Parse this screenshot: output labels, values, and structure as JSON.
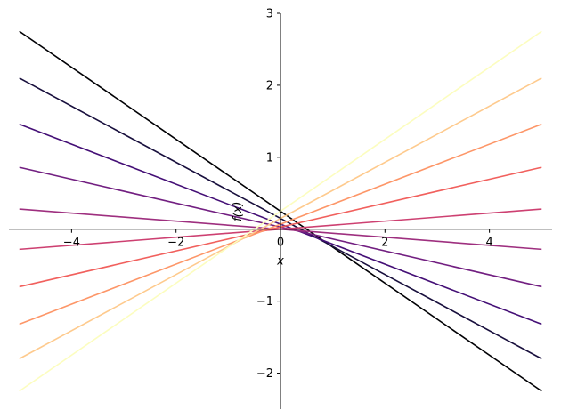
{
  "chart_data": {
    "type": "line",
    "title": "",
    "xlabel": "x",
    "ylabel": "f(x)",
    "xlim": [
      -5.2,
      5.2
    ],
    "ylim": [
      -2.5,
      3.0
    ],
    "x_ticks": [
      -4,
      -2,
      0,
      2,
      4
    ],
    "y_ticks": [
      -2,
      -1,
      1,
      2,
      3
    ],
    "x_tick_labels": [
      "−4",
      "−2",
      "0",
      "2",
      "4"
    ],
    "y_tick_labels": [
      "−2",
      "−1",
      "1",
      "2",
      "3"
    ],
    "x_domain": [
      -5,
      5
    ],
    "grid": false,
    "legend": false,
    "spines": "centered at origin",
    "series": [
      {
        "color": "#000004",
        "x": [
          -5,
          5
        ],
        "y": [
          2.75,
          -2.25
        ]
      },
      {
        "color": "#180f3d",
        "x": [
          -5,
          5
        ],
        "y": [
          2.1,
          -1.8
        ]
      },
      {
        "color": "#440f76",
        "x": [
          -5,
          5
        ],
        "y": [
          1.46,
          -1.32
        ]
      },
      {
        "color": "#721f81",
        "x": [
          -5,
          5
        ],
        "y": [
          0.86,
          -0.8
        ]
      },
      {
        "color": "#9e2f7f",
        "x": [
          -5,
          5
        ],
        "y": [
          0.28,
          -0.28
        ]
      },
      {
        "color": "#cd4071",
        "x": [
          -5,
          5
        ],
        "y": [
          -0.28,
          0.28
        ]
      },
      {
        "color": "#f1605d",
        "x": [
          -5,
          5
        ],
        "y": [
          -0.8,
          0.86
        ]
      },
      {
        "color": "#fd9668",
        "x": [
          -5,
          5
        ],
        "y": [
          -1.32,
          1.46
        ]
      },
      {
        "color": "#feca8d",
        "x": [
          -5,
          5
        ],
        "y": [
          -1.8,
          2.1
        ]
      },
      {
        "color": "#fcfdbf",
        "x": [
          -5,
          5
        ],
        "y": [
          -2.25,
          2.75
        ]
      }
    ]
  }
}
